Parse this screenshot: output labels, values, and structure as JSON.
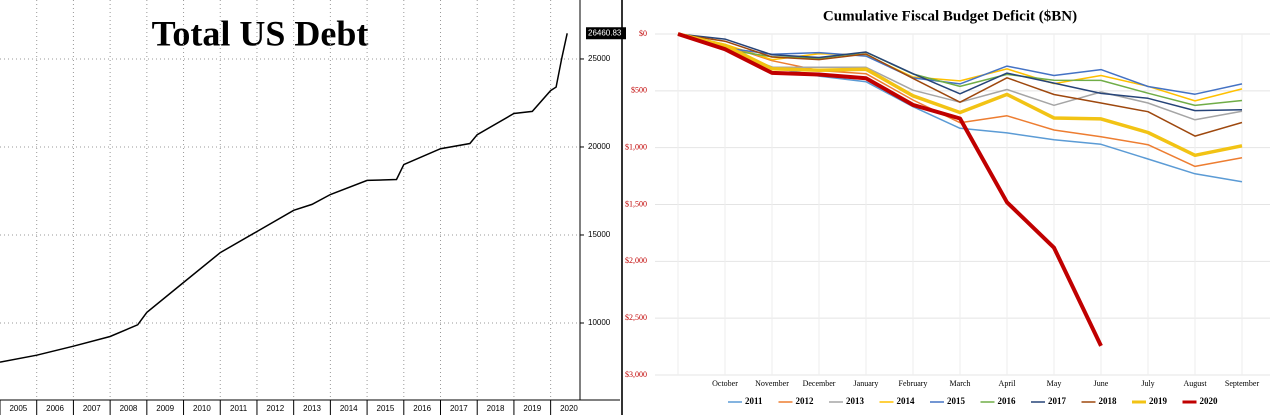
{
  "chart_data": [
    {
      "type": "line",
      "title": "Total US Debt",
      "x": [
        2005,
        2006,
        2007,
        2008,
        2008.75,
        2009,
        2010,
        2011,
        2012,
        2013,
        2013.5,
        2014,
        2015,
        2015.8,
        2016,
        2017,
        2017.8,
        2018,
        2019,
        2019.5,
        2020,
        2020.15,
        2020.3,
        2020.45
      ],
      "values": [
        7780,
        8170,
        8680,
        9230,
        9900,
        10600,
        12300,
        14000,
        15200,
        16400,
        16740,
        17300,
        18100,
        18150,
        19000,
        19900,
        20200,
        20700,
        21900,
        22020,
        23200,
        23400,
        25000,
        26460.83
      ],
      "color": "#000000",
      "xlim": [
        2005,
        2020.8
      ],
      "xticks": [
        2005,
        2006,
        2007,
        2008,
        2009,
        2010,
        2011,
        2012,
        2013,
        2014,
        2015,
        2016,
        2017,
        2018,
        2019,
        2020
      ],
      "ylim": [
        5625,
        28350
      ],
      "yticks": [
        10000,
        15000,
        20000,
        25000
      ],
      "grid": true
    },
    {
      "type": "line",
      "title": "Cumulative Fiscal Budget Deficit ($BN)",
      "categories": [
        null,
        "October",
        "November",
        "December",
        "January",
        "February",
        "March",
        "April",
        "May",
        "June",
        "July",
        "August",
        "September"
      ],
      "ylim": [
        0,
        3000
      ],
      "y_reversed": true,
      "yticks": [
        {
          "value": 0,
          "label": "$0"
        },
        {
          "value": 500,
          "label": "$500"
        },
        {
          "value": 1000,
          "label": "$1,000"
        },
        {
          "value": 1500,
          "label": "$1,500"
        },
        {
          "value": 2000,
          "label": "$2,000"
        },
        {
          "value": 2500,
          "label": "$2,500"
        },
        {
          "value": 3000,
          "label": "$3,000"
        }
      ],
      "grid": true,
      "legend": "bottom",
      "series": [
        {
          "name": "2011",
          "color": "#5b9bd5",
          "linewidth": 1.5,
          "values": [
            0,
            140,
            290,
            370,
            420,
            640,
            830,
            870,
            930,
            970,
            1100,
            1230,
            1300
          ]
        },
        {
          "name": "2012",
          "color": "#ed7d31",
          "linewidth": 1.5,
          "values": [
            0,
            98,
            235,
            321,
            349,
            581,
            780,
            720,
            845,
            904,
            974,
            1165,
            1089
          ]
        },
        {
          "name": "2013",
          "color": "#a5a5a5",
          "linewidth": 1.5,
          "values": [
            0,
            120,
            292,
            293,
            293,
            494,
            600,
            488,
            627,
            510,
            607,
            755,
            680
          ]
        },
        {
          "name": "2014",
          "color": "#ffc000",
          "linewidth": 1.5,
          "values": [
            0,
            91,
            226,
            174,
            184,
            378,
            413,
            307,
            436,
            365,
            460,
            589,
            483
          ]
        },
        {
          "name": "2015",
          "color": "#4472c4",
          "linewidth": 1.5,
          "values": [
            0,
            122,
            178,
            164,
            194,
            386,
            439,
            282,
            365,
            313,
            462,
            530,
            439
          ]
        },
        {
          "name": "2016",
          "color": "#70ad47",
          "linewidth": 1.5,
          "values": [
            0,
            136,
            201,
            215,
            160,
            352,
            461,
            355,
            407,
            408,
            521,
            628,
            585
          ]
        },
        {
          "name": "2017",
          "color": "#264478",
          "linewidth": 1.5,
          "values": [
            0,
            45,
            183,
            207,
            158,
            349,
            526,
            344,
            432,
            523,
            566,
            674,
            666
          ]
        },
        {
          "name": "2018",
          "color": "#9e480e",
          "linewidth": 1.5,
          "values": [
            0,
            63,
            202,
            225,
            176,
            391,
            600,
            385,
            532,
            607,
            684,
            898,
            779
          ]
        },
        {
          "name": "2019",
          "color": "#f2c314",
          "linewidth": 3.5,
          "values": [
            0,
            100,
            305,
            319,
            310,
            544,
            691,
            531,
            739,
            747,
            867,
            1067,
            984
          ]
        },
        {
          "name": "2020",
          "color": "#c00000",
          "linewidth": 4,
          "values": [
            0,
            134,
            342,
            356,
            389,
            624,
            743,
            1481,
            1880,
            2744,
            null,
            null,
            null
          ]
        }
      ]
    }
  ]
}
